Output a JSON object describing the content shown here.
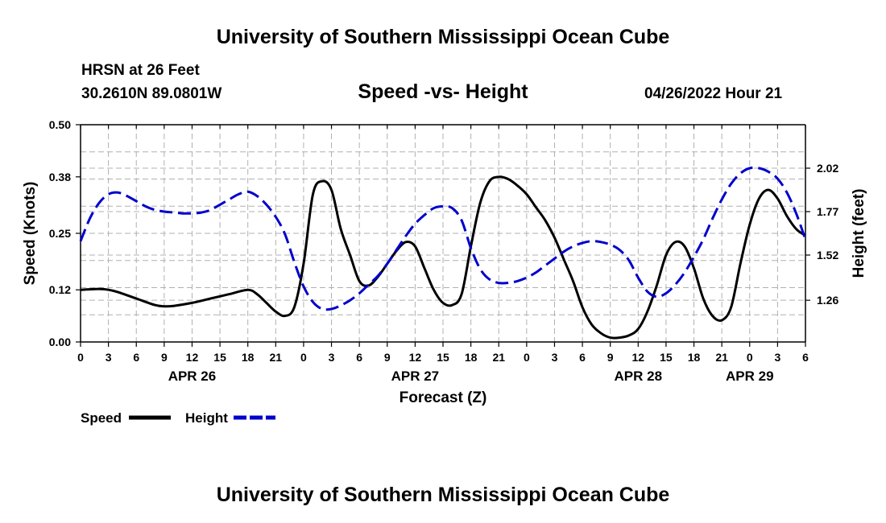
{
  "page": {
    "title_top": "University of Southern Mississippi Ocean Cube",
    "title_bottom": "University of Southern Mississippi Ocean Cube",
    "station": "HRSN at 26 Feet",
    "coords": "30.2610N  89.0801W",
    "subtitle": "Speed -vs- Height",
    "datetime": "04/26/2022 Hour 21"
  },
  "colors": {
    "speed": "#000000",
    "height": "#0000cc",
    "grid": "#b0b0b0"
  },
  "chart_data": {
    "type": "line",
    "title": "Speed -vs- Height",
    "xlabel": "Forecast (Z)",
    "ylabel": "Speed (Knots)",
    "y2label": "Height (feet)",
    "x_unit": "hours since APR 26 00Z",
    "xlim": [
      0,
      78
    ],
    "ylim": [
      0,
      0.5
    ],
    "y2lim": [
      1.02,
      2.27
    ],
    "yticks": [
      "0.00",
      "0.12",
      "0.25",
      "0.38",
      "0.50"
    ],
    "y2ticks": [
      "1.26",
      "1.52",
      "1.77",
      "2.02"
    ],
    "xtick_labels": [
      "0",
      "3",
      "6",
      "9",
      "12",
      "15",
      "18",
      "21",
      "0",
      "3",
      "6",
      "9",
      "12",
      "15",
      "18",
      "21",
      "0",
      "3",
      "6",
      "9",
      "12",
      "15",
      "18",
      "21",
      "0",
      "3",
      "6"
    ],
    "date_labels": [
      {
        "label": "APR 26",
        "x": 12
      },
      {
        "label": "APR 27",
        "x": 36
      },
      {
        "label": "APR 28",
        "x": 60
      },
      {
        "label": "APR 29",
        "x": 72
      }
    ],
    "legend": [
      "Speed",
      "Height"
    ],
    "grid": true,
    "series": [
      {
        "name": "Speed",
        "axis": "left",
        "style": "solid",
        "x": [
          0,
          2,
          3,
          4,
          6,
          8,
          9,
          10,
          12,
          14,
          16,
          18,
          19,
          20,
          21,
          22,
          23,
          24,
          25,
          26,
          27,
          28,
          29,
          30,
          31,
          32,
          33,
          34,
          35,
          36,
          37,
          38,
          39,
          40,
          41,
          42,
          43,
          44,
          45,
          46,
          47,
          48,
          49,
          50,
          51,
          52,
          53,
          54,
          55,
          56,
          57,
          58,
          59,
          60,
          61,
          62,
          63,
          64,
          65,
          66,
          67,
          68,
          69,
          70,
          71,
          72,
          73,
          74,
          75,
          76,
          77,
          78
        ],
        "y": [
          0.12,
          0.122,
          0.12,
          0.115,
          0.1,
          0.085,
          0.082,
          0.083,
          0.09,
          0.1,
          0.11,
          0.12,
          0.11,
          0.09,
          0.07,
          0.06,
          0.08,
          0.18,
          0.34,
          0.37,
          0.35,
          0.26,
          0.2,
          0.14,
          0.13,
          0.15,
          0.18,
          0.21,
          0.23,
          0.22,
          0.17,
          0.12,
          0.09,
          0.085,
          0.11,
          0.22,
          0.32,
          0.37,
          0.38,
          0.375,
          0.36,
          0.34,
          0.31,
          0.28,
          0.24,
          0.19,
          0.14,
          0.08,
          0.04,
          0.02,
          0.01,
          0.01,
          0.015,
          0.03,
          0.07,
          0.13,
          0.2,
          0.23,
          0.22,
          0.17,
          0.1,
          0.06,
          0.05,
          0.08,
          0.18,
          0.27,
          0.33,
          0.35,
          0.33,
          0.29,
          0.26,
          0.245
        ]
      },
      {
        "name": "Height",
        "axis": "right",
        "style": "dashed",
        "x": [
          0,
          1,
          2,
          3,
          4,
          5,
          6,
          7,
          8,
          9,
          10,
          11,
          12,
          13,
          14,
          15,
          16,
          17,
          18,
          19,
          20,
          21,
          22,
          23,
          24,
          25,
          26,
          27,
          28,
          29,
          30,
          31,
          32,
          33,
          34,
          35,
          36,
          37,
          38,
          39,
          40,
          41,
          42,
          43,
          44,
          45,
          46,
          47,
          48,
          49,
          50,
          51,
          52,
          53,
          54,
          55,
          56,
          57,
          58,
          59,
          60,
          61,
          62,
          63,
          64,
          65,
          66,
          67,
          68,
          69,
          70,
          71,
          72,
          73,
          74,
          75,
          76,
          77,
          78
        ],
        "y": [
          1.6,
          1.73,
          1.82,
          1.87,
          1.88,
          1.86,
          1.83,
          1.8,
          1.78,
          1.77,
          1.765,
          1.76,
          1.76,
          1.765,
          1.78,
          1.81,
          1.84,
          1.87,
          1.885,
          1.86,
          1.81,
          1.74,
          1.64,
          1.48,
          1.34,
          1.25,
          1.21,
          1.21,
          1.23,
          1.26,
          1.3,
          1.35,
          1.4,
          1.47,
          1.55,
          1.63,
          1.7,
          1.75,
          1.79,
          1.8,
          1.79,
          1.72,
          1.56,
          1.44,
          1.38,
          1.36,
          1.36,
          1.37,
          1.39,
          1.42,
          1.46,
          1.5,
          1.54,
          1.57,
          1.59,
          1.6,
          1.595,
          1.58,
          1.55,
          1.49,
          1.39,
          1.31,
          1.28,
          1.3,
          1.35,
          1.42,
          1.51,
          1.61,
          1.73,
          1.84,
          1.93,
          1.99,
          2.02,
          2.02,
          2.0,
          1.96,
          1.88,
          1.76,
          1.61
        ]
      }
    ]
  }
}
